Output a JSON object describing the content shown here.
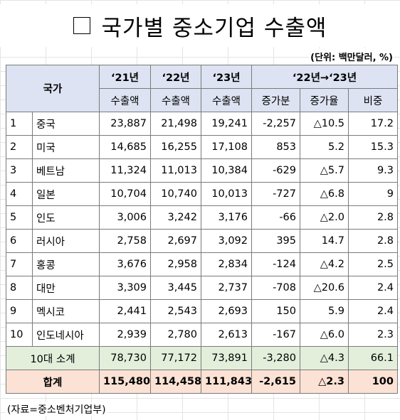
{
  "title": "국가별 중소기업 수출액",
  "title_icon": "empty-square-icon",
  "unit": "(단위: 백만달러, %)",
  "header": {
    "country": "국가",
    "year21": "‘21년",
    "year22": "‘22년",
    "year23": "‘23년",
    "change_period": "‘22년→‘23년",
    "export_label": "수출액",
    "increase_amount": "증가분",
    "increase_rate": "증가율",
    "share": "비중"
  },
  "rows": [
    {
      "no": "1",
      "country": "중국",
      "y21": "23,887",
      "y22": "21,498",
      "y23": "19,241",
      "inc": "-2,257",
      "rate": "△10.5",
      "share": "17.2"
    },
    {
      "no": "2",
      "country": "미국",
      "y21": "14,685",
      "y22": "16,255",
      "y23": "17,108",
      "inc": "853",
      "rate": "5.2",
      "share": "15.3"
    },
    {
      "no": "3",
      "country": "베트남",
      "y21": "11,324",
      "y22": "11,013",
      "y23": "10,384",
      "inc": "-629",
      "rate": "△5.7",
      "share": "9.3"
    },
    {
      "no": "4",
      "country": "일본",
      "y21": "10,704",
      "y22": "10,740",
      "y23": "10,013",
      "inc": "-727",
      "rate": "△6.8",
      "share": "9"
    },
    {
      "no": "5",
      "country": "인도",
      "y21": "3,006",
      "y22": "3,242",
      "y23": "3,176",
      "inc": "-66",
      "rate": "△2.0",
      "share": "2.8"
    },
    {
      "no": "6",
      "country": "러시아",
      "y21": "2,758",
      "y22": "2,697",
      "y23": "3,092",
      "inc": "395",
      "rate": "14.7",
      "share": "2.8"
    },
    {
      "no": "7",
      "country": "홍콩",
      "y21": "3,676",
      "y22": "2,958",
      "y23": "2,834",
      "inc": "-124",
      "rate": "△4.2",
      "share": "2.5"
    },
    {
      "no": "8",
      "country": "대만",
      "y21": "3,309",
      "y22": "3,445",
      "y23": "2,737",
      "inc": "-708",
      "rate": "△20.6",
      "share": "2.4"
    },
    {
      "no": "9",
      "country": "멕시코",
      "y21": "2,441",
      "y22": "2,543",
      "y23": "2,693",
      "inc": "150",
      "rate": "5.9",
      "share": "2.4"
    },
    {
      "no": "10",
      "country": "인도네시아",
      "y21": "2,939",
      "y22": "2,780",
      "y23": "2,613",
      "inc": "-167",
      "rate": "△6.0",
      "share": "2.3"
    }
  ],
  "subtotal": {
    "label": "10대 소계",
    "y21": "78,730",
    "y22": "77,172",
    "y23": "73,891",
    "inc": "-3,280",
    "rate": "△4.3",
    "share": "66.1"
  },
  "total": {
    "label": "합계",
    "y21": "115,480",
    "y22": "114,458",
    "y23": "111,843",
    "inc": "-2,615",
    "rate": "△2.3",
    "share": "100"
  },
  "source": "(자료=중소벤처기업부)",
  "colors": {
    "header_bg": "#dde3f2",
    "subtotal_bg": "#e3efdb",
    "total_bg": "#fbe2d5"
  }
}
